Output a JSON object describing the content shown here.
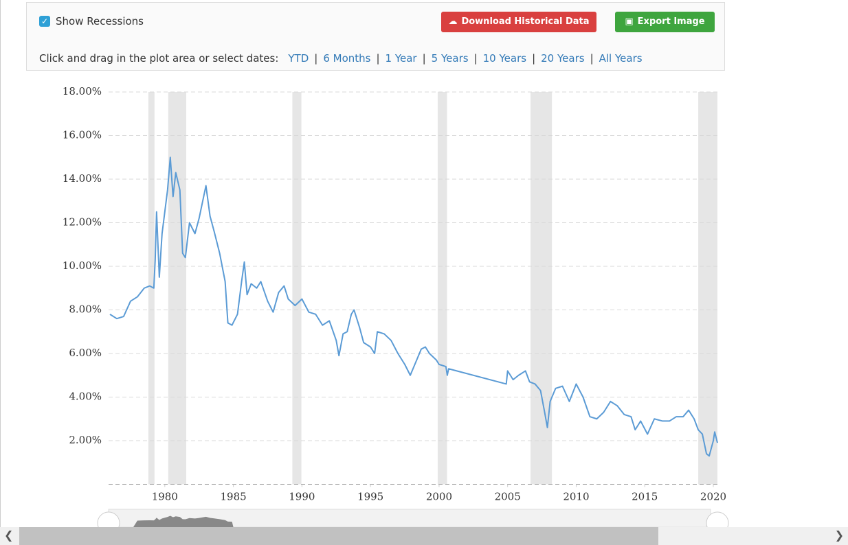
{
  "controls": {
    "show_recessions": "Show Recessions",
    "download_button": "Download Historical Data",
    "export_button": "Export Image",
    "range_prompt": "Click and drag in the plot area or select dates:",
    "separator": "|",
    "ranges": [
      "YTD",
      "6 Months",
      "1 Year",
      "5 Years",
      "10 Years",
      "20 Years",
      "All Years"
    ]
  },
  "chart_data": {
    "type": "line",
    "color": "#5b9bd5",
    "recession_color": "#e6e6e6",
    "grid": true,
    "xlim": [
      1975.9,
      2020.3
    ],
    "xticks": [
      1980,
      1985,
      1990,
      1995,
      2000,
      2005,
      2010,
      2015,
      2020
    ],
    "ylim": [
      0,
      18
    ],
    "yticks": [
      {
        "value": 2,
        "label": "2.00%"
      },
      {
        "value": 4,
        "label": "4.00%"
      },
      {
        "value": 6,
        "label": "6.00%"
      },
      {
        "value": 8,
        "label": "8.00%"
      },
      {
        "value": 10,
        "label": "10.00%"
      },
      {
        "value": 12,
        "label": "12.00%"
      },
      {
        "value": 14,
        "label": "14.00%"
      },
      {
        "value": 16,
        "label": "16.00%"
      },
      {
        "value": 18,
        "label": "18.00%"
      }
    ],
    "recessions": [
      [
        1978.8,
        1979.25
      ],
      [
        1980.25,
        1981.56
      ],
      [
        1989.3,
        1989.96
      ],
      [
        1999.9,
        2000.58
      ],
      [
        2006.67,
        2008.23
      ],
      [
        2018.9,
        2020.3
      ]
    ],
    "x": [
      1976.0,
      1976.5,
      1977.0,
      1977.5,
      1978.0,
      1978.5,
      1978.9,
      1979.2,
      1979.3,
      1979.4,
      1979.6,
      1979.8,
      1980.0,
      1980.2,
      1980.4,
      1980.6,
      1980.8,
      1981.1,
      1981.3,
      1981.5,
      1981.8,
      1982.2,
      1982.5,
      1983.0,
      1983.3,
      1983.6,
      1984.0,
      1984.4,
      1984.6,
      1984.9,
      1985.3,
      1985.6,
      1985.8,
      1986.0,
      1986.3,
      1986.7,
      1987.0,
      1987.5,
      1987.9,
      1988.3,
      1988.7,
      1989.0,
      1989.5,
      1990.0,
      1990.5,
      1991.0,
      1991.5,
      1992.0,
      1992.5,
      1992.7,
      1993.0,
      1993.3,
      1993.6,
      1993.8,
      1994.2,
      1994.5,
      1995.0,
      1995.3,
      1995.5,
      1996.0,
      1996.5,
      1997.0,
      1997.5,
      1997.9,
      1998.3,
      1998.7,
      1999.0,
      1999.3,
      1999.8,
      2000.0,
      2000.5,
      2000.6,
      2000.7,
      2004.9,
      2005.0,
      2005.4,
      2005.8,
      2006.3,
      2006.6,
      2007.0,
      2007.4,
      2007.7,
      2007.9,
      2008.1,
      2008.5,
      2009.0,
      2009.5,
      2010.0,
      2010.5,
      2011.0,
      2011.5,
      2012.0,
      2012.5,
      2013.0,
      2013.5,
      2014.0,
      2014.3,
      2014.7,
      2015.2,
      2015.7,
      2016.3,
      2016.8,
      2017.3,
      2017.8,
      2018.2,
      2018.6,
      2018.9,
      2019.2,
      2019.5,
      2019.7,
      2020.0,
      2020.1,
      2020.3
    ],
    "values": [
      7.8,
      7.6,
      7.7,
      8.4,
      8.6,
      9.0,
      9.1,
      9.0,
      10.3,
      12.5,
      9.5,
      11.5,
      12.5,
      13.5,
      15.0,
      13.2,
      14.3,
      13.5,
      10.6,
      10.4,
      12.0,
      11.5,
      12.2,
      13.7,
      12.3,
      11.6,
      10.6,
      9.3,
      7.4,
      7.3,
      7.8,
      9.3,
      10.2,
      8.7,
      9.2,
      9.0,
      9.3,
      8.4,
      7.9,
      8.8,
      9.1,
      8.5,
      8.2,
      8.5,
      7.9,
      7.8,
      7.3,
      7.5,
      6.6,
      5.9,
      6.9,
      7.0,
      7.8,
      8.0,
      7.2,
      6.5,
      6.3,
      6.0,
      7.0,
      6.9,
      6.6,
      6.0,
      5.5,
      5.0,
      5.6,
      6.2,
      6.3,
      6.0,
      5.7,
      5.5,
      5.4,
      5.0,
      5.3,
      4.6,
      5.2,
      4.8,
      5.0,
      5.2,
      4.7,
      4.6,
      4.3,
      3.3,
      2.6,
      3.8,
      4.4,
      4.5,
      3.8,
      4.6,
      4.0,
      3.1,
      3.0,
      3.3,
      3.8,
      3.6,
      3.2,
      3.1,
      2.5,
      2.9,
      2.3,
      3.0,
      2.9,
      2.9,
      3.1,
      3.1,
      3.4,
      3.0,
      2.5,
      2.3,
      1.4,
      1.3,
      2.0,
      2.4,
      1.9
    ]
  }
}
